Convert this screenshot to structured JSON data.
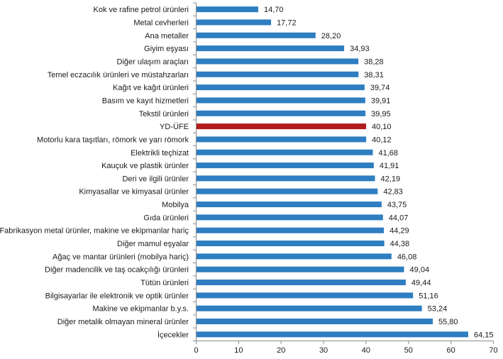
{
  "chart_data": {
    "type": "bar",
    "orientation": "horizontal",
    "title": "",
    "xlabel": "",
    "ylabel": "",
    "xlim": [
      0,
      70
    ],
    "x_ticks": [
      "0",
      "10",
      "20",
      "30",
      "40",
      "50",
      "60",
      "70"
    ],
    "grid": false,
    "legend": "none",
    "colors": {
      "default": "#2e7ec1",
      "highlight": "#b01c1c"
    },
    "highlight_category": "YD-ÜFE",
    "categories": [
      "Kok ve rafine petrol ürünleri",
      "Metal cevherleri",
      "Ana metaller",
      "Giyim eşyası",
      "Diğer ulaşım araçları",
      "Temel eczacılık ürünleri ve müstahzarları",
      "Kağıt ve kağıt ürünleri",
      "Basım ve kayıt hizmetleri",
      "Tekstil ürünleri",
      "YD-ÜFE",
      "Motorlu kara taşıtları, römork ve yarı römork",
      "Elektrikli teçhizat",
      "Kauçuk ve plastik ürünler",
      "Deri ve ilgili ürünler",
      "Kimyasallar ve kimyasal ürünler",
      "Mobilya",
      "Gıda ürünleri",
      "Fabrikasyon metal ürünler, makine ve ekipmanlar hariç",
      "Diğer mamul eşyalar",
      "Ağaç ve mantar ürünleri (mobilya hariç)",
      "Diğer madencilik ve taş ocakçılığı ürünleri",
      "Tütün ürünleri",
      "Bilgisayarlar ile elektronik ve optik ürünler",
      "Makine ve ekipmanlar b.y.s.",
      "Diğer metalik olmayan mineral ürünler",
      "İçecekler"
    ],
    "values": [
      14.7,
      17.72,
      28.2,
      34.93,
      38.28,
      38.31,
      39.74,
      39.91,
      39.95,
      40.1,
      40.12,
      41.68,
      41.91,
      42.19,
      42.83,
      43.75,
      44.07,
      44.29,
      44.38,
      46.08,
      49.04,
      49.44,
      51.16,
      53.24,
      55.8,
      64.15
    ],
    "value_labels": [
      "14,70",
      "17,72",
      "28,20",
      "34,93",
      "38,28",
      "38,31",
      "39,74",
      "39,91",
      "39,95",
      "40,10",
      "40,12",
      "41,68",
      "41,91",
      "42,19",
      "42,83",
      "43,75",
      "44,07",
      "44,29",
      "44,38",
      "46,08",
      "49,04",
      "49,44",
      "51,16",
      "53,24",
      "55,80",
      "64,15"
    ]
  }
}
